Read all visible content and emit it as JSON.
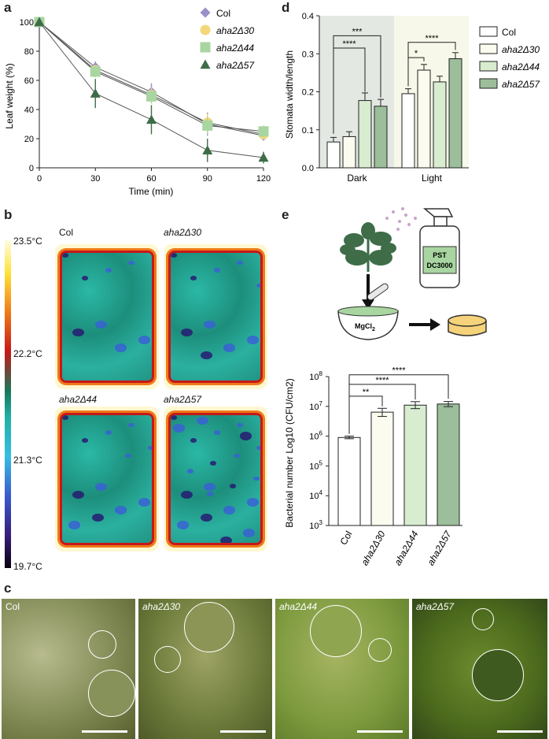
{
  "panels": {
    "a": "a",
    "b": "b",
    "c": "c",
    "d": "d",
    "e": "e"
  },
  "panel_a": {
    "chart_data": {
      "type": "line",
      "x": [
        0,
        30,
        60,
        90,
        120
      ],
      "xlabel": "Time (min)",
      "ylabel": "Leaf weight (%)",
      "xlim": [
        0,
        120
      ],
      "ylim": [
        0,
        100
      ],
      "xticks": [
        "0",
        "30",
        "60",
        "90",
        "120"
      ],
      "yticks": [
        "0",
        "20",
        "40",
        "60",
        "80",
        "100"
      ],
      "legend_position": "top-right",
      "series": [
        {
          "name": "Col",
          "values": [
            100,
            69,
            52,
            30,
            22
          ],
          "err": [
            0,
            4,
            6,
            8,
            3
          ],
          "color": "#9a8fc8",
          "marker": "diamond"
        },
        {
          "name": "aha2Δ30",
          "values": [
            100,
            67,
            50,
            31,
            23
          ],
          "err": [
            0,
            3,
            5,
            6,
            3
          ],
          "color": "#f3d77a",
          "marker": "circle"
        },
        {
          "name": "aha2Δ44",
          "values": [
            100,
            66,
            49,
            29,
            25
          ],
          "err": [
            0,
            4,
            5,
            6,
            4
          ],
          "color": "#a8d5a0",
          "marker": "square"
        },
        {
          "name": "aha2Δ57",
          "values": [
            100,
            51,
            33,
            12,
            7
          ],
          "err": [
            0,
            10,
            10,
            8,
            4
          ],
          "color": "#3e6d48",
          "marker": "triangle"
        }
      ]
    }
  },
  "panel_b": {
    "scale_labels": [
      "23.5°C",
      "22.2°C",
      "21.3°C",
      "19.7°C"
    ],
    "leaf_labels": [
      "Col",
      "aha2Δ30",
      "aha2Δ44",
      "aha2Δ57"
    ]
  },
  "panel_c": {
    "labels": [
      "Col",
      "aha2Δ30",
      "aha2Δ44",
      "aha2Δ57"
    ]
  },
  "panel_d": {
    "chart_data": {
      "type": "bar",
      "categories": [
        "Dark",
        "Light"
      ],
      "ylabel": "Stomata width/length",
      "ylim": [
        0,
        0.4
      ],
      "yticks": [
        "0.0",
        "0.1",
        "0.2",
        "0.3",
        "0.4"
      ],
      "legend_position": "right",
      "series": [
        {
          "name": "Col",
          "values": [
            0.068,
            0.195
          ],
          "err": [
            0.012,
            0.013
          ],
          "color": "#ffffff"
        },
        {
          "name": "aha2Δ30",
          "values": [
            0.082,
            0.257
          ],
          "err": [
            0.013,
            0.015
          ],
          "color": "#fbfbef"
        },
        {
          "name": "aha2Δ44",
          "values": [
            0.177,
            0.226
          ],
          "err": [
            0.02,
            0.015
          ],
          "color": "#d8ecd0"
        },
        {
          "name": "aha2Δ57",
          "values": [
            0.162,
            0.287
          ],
          "err": [
            0.018,
            0.016
          ],
          "color": "#9cbe9a"
        }
      ],
      "annotations": [
        "****",
        "***",
        "*",
        "****"
      ]
    }
  },
  "panel_e": {
    "schematic": {
      "bottle_line1": "PST",
      "bottle_line2": "DC3000",
      "mortar_label": "MgCl",
      "mortar_sub": "2"
    },
    "chart_data": {
      "type": "bar",
      "categories": [
        "Col",
        "aha2Δ30",
        "aha2Δ44",
        "aha2Δ57"
      ],
      "values": [
        900000,
        6400000,
        11000000,
        12000000
      ],
      "err_low": [
        80000,
        1800000,
        2600000,
        2200000
      ],
      "err_high": [
        100000,
        2200000,
        3400000,
        2600000
      ],
      "colors": [
        "#ffffff",
        "#fbfbef",
        "#d8ecd0",
        "#9cbe9a"
      ],
      "ylabel": "Bacterial number Log10 (CFU/cm2)",
      "yscale": "log",
      "ylim": [
        1000,
        100000000
      ],
      "yticks": [
        {
          "base": "10",
          "exp": "3"
        },
        {
          "base": "10",
          "exp": "4"
        },
        {
          "base": "10",
          "exp": "5"
        },
        {
          "base": "10",
          "exp": "6"
        },
        {
          "base": "10",
          "exp": "7"
        },
        {
          "base": "10",
          "exp": "8"
        }
      ],
      "annotations": [
        "**",
        "****",
        "****"
      ]
    }
  },
  "colors": {
    "dark_bg": "#e3e8e3",
    "light_bg": "#f7f8e9",
    "dark_green": "#3e6d48"
  }
}
